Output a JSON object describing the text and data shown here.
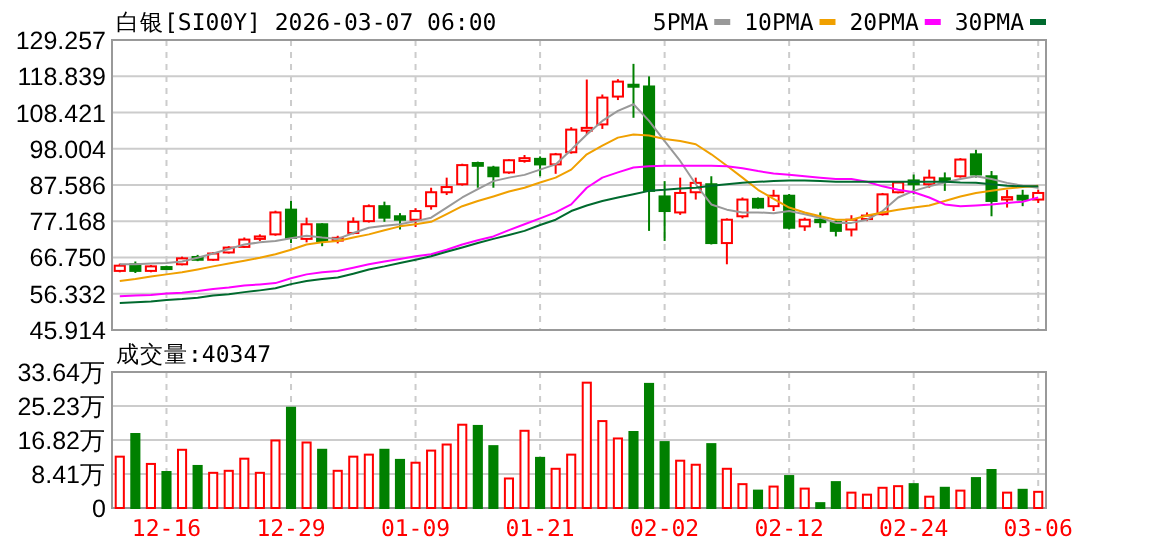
{
  "chart_data": [
    {
      "type": "candlestick",
      "title": "白银[SI00Y] 2026-03-07 06:00",
      "tick_labels": "y",
      "grid": true,
      "legend": "top right",
      "categories": [
        null,
        null,
        null,
        null,
        null,
        null,
        null,
        null,
        null,
        null,
        null,
        null,
        null,
        null,
        null,
        null,
        null,
        null,
        null,
        null,
        null,
        null,
        null,
        null,
        null,
        null,
        null,
        null,
        null,
        null,
        null,
        null,
        null,
        null,
        null,
        null,
        null,
        null,
        null,
        null,
        null,
        null,
        null,
        null,
        null,
        null,
        null,
        null,
        null,
        null,
        null,
        null,
        null,
        null,
        null,
        null,
        null,
        null,
        null,
        null
      ],
      "ylim": [
        45.914,
        129.257
      ],
      "yticks": [
        45.914,
        56.332,
        {
          "value": 66.75,
          "label": "66.750"
        },
        77.168,
        87.586,
        98.004,
        108.421,
        118.839,
        129.257
      ],
      "ohlc": [
        [
          62.9,
          65.0,
          62.5,
          64.4
        ],
        [
          64.8,
          65.6,
          62.3,
          62.9
        ],
        [
          62.9,
          64.6,
          62.5,
          64.2
        ],
        [
          64.0,
          64.4,
          63.2,
          63.6
        ],
        [
          64.8,
          67.0,
          64.5,
          66.5
        ],
        [
          66.9,
          67.5,
          65.7,
          66.1
        ],
        [
          66.1,
          68.3,
          65.8,
          67.9
        ],
        [
          68.2,
          70.0,
          67.9,
          69.6
        ],
        [
          69.8,
          72.5,
          69.5,
          71.9
        ],
        [
          72.1,
          73.4,
          71.5,
          72.8
        ],
        [
          73.4,
          80.2,
          73.0,
          79.7
        ],
        [
          80.5,
          83.0,
          70.9,
          72.4
        ],
        [
          72.1,
          78.2,
          71.1,
          76.3
        ],
        [
          76.3,
          76.6,
          70.0,
          71.5
        ],
        [
          71.6,
          73.0,
          70.8,
          72.4
        ],
        [
          73.8,
          78.3,
          73.4,
          77.0
        ],
        [
          77.2,
          82.0,
          76.8,
          81.5
        ],
        [
          81.5,
          82.8,
          77.0,
          78.2
        ],
        [
          78.6,
          79.5,
          74.8,
          77.6
        ],
        [
          77.6,
          80.9,
          75.5,
          80.1
        ],
        [
          81.5,
          86.8,
          80.5,
          85.5
        ],
        [
          85.5,
          89.7,
          84.7,
          87.0
        ],
        [
          87.8,
          93.7,
          87.4,
          93.3
        ],
        [
          93.9,
          94.3,
          86.8,
          93.1
        ],
        [
          92.6,
          93.1,
          86.8,
          90.1
        ],
        [
          91.2,
          95.0,
          90.8,
          94.7
        ],
        [
          94.5,
          96.2,
          94.0,
          95.3
        ],
        [
          95.1,
          95.8,
          90.1,
          93.5
        ],
        [
          93.5,
          96.8,
          90.8,
          96.4
        ],
        [
          97.0,
          104.2,
          96.6,
          103.5
        ],
        [
          103.2,
          117.9,
          102.1,
          104.0
        ],
        [
          105.0,
          113.6,
          103.7,
          112.7
        ],
        [
          113.0,
          118.0,
          112.0,
          117.3
        ],
        [
          116.4,
          122.4,
          106.9,
          115.9
        ],
        [
          115.9,
          118.8,
          74.4,
          85.9
        ],
        [
          84.3,
          88.7,
          71.5,
          80.1
        ],
        [
          79.7,
          89.7,
          79.0,
          85.3
        ],
        [
          85.5,
          89.7,
          83.4,
          88.2
        ],
        [
          87.8,
          90.1,
          70.5,
          70.9
        ],
        [
          70.9,
          78.0,
          64.8,
          77.6
        ],
        [
          78.6,
          84.0,
          78.0,
          83.4
        ],
        [
          83.6,
          84.0,
          80.8,
          81.1
        ],
        [
          81.5,
          86.2,
          80.1,
          84.5
        ],
        [
          84.5,
          85.0,
          74.8,
          75.3
        ],
        [
          75.7,
          78.2,
          74.4,
          77.6
        ],
        [
          77.6,
          79.7,
          75.3,
          76.9
        ],
        [
          76.9,
          77.4,
          72.8,
          74.4
        ],
        [
          74.8,
          78.9,
          72.8,
          77.6
        ],
        [
          77.8,
          79.7,
          77.2,
          78.8
        ],
        [
          79.2,
          85.3,
          78.8,
          84.9
        ],
        [
          85.5,
          88.7,
          85.2,
          88.3
        ],
        [
          88.9,
          90.6,
          84.9,
          87.8
        ],
        [
          87.8,
          92.0,
          86.8,
          89.7
        ],
        [
          89.5,
          91.2,
          85.9,
          89.1
        ],
        [
          90.1,
          95.3,
          89.7,
          94.9
        ],
        [
          96.4,
          97.7,
          89.7,
          90.6
        ],
        [
          90.1,
          91.6,
          78.6,
          83.0
        ],
        [
          83.4,
          86.2,
          81.1,
          84.1
        ],
        [
          84.5,
          86.2,
          81.5,
          83.4
        ],
        [
          83.4,
          86.2,
          82.4,
          85.3
        ]
      ],
      "colors": [
        "#ff0000",
        "#008000",
        "#ff0000",
        "#008000",
        "#ff0000",
        "#008000",
        "#ff0000",
        "#ff0000",
        "#ff0000",
        "#ff0000",
        "#ff0000",
        "#008000",
        "#ff0000",
        "#008000",
        "#ff0000",
        "#ff0000",
        "#ff0000",
        "#008000",
        "#008000",
        "#ff0000",
        "#ff0000",
        "#ff0000",
        "#ff0000",
        "#008000",
        "#008000",
        "#ff0000",
        "#ff0000",
        "#008000",
        "#ff0000",
        "#ff0000",
        "#ff0000",
        "#ff0000",
        "#ff0000",
        "#008000",
        "#008000",
        "#008000",
        "#ff0000",
        "#ff0000",
        "#008000",
        "#ff0000",
        "#ff0000",
        "#008000",
        "#ff0000",
        "#008000",
        "#ff0000",
        "#008000",
        "#008000",
        "#ff0000",
        "#ff0000",
        "#ff0000",
        "#ff0000",
        "#008000",
        "#ff0000",
        "#008000",
        "#ff0000",
        "#008000",
        "#008000",
        "#ff0000",
        "#008000",
        "#ff0000"
      ],
      "series": [
        {
          "type": "line",
          "name": "5PMA",
          "color": "#999999",
          "values": [
            64.8,
            64.8,
            65.0,
            65.2,
            65.6,
            66.7,
            67.9,
            69.2,
            70.5,
            71.1,
            71.5,
            72.3,
            73.0,
            72.5,
            72.1,
            73.8,
            75.3,
            75.9,
            76.3,
            77.2,
            78.2,
            81.1,
            84.0,
            86.4,
            88.7,
            89.7,
            90.5,
            92.0,
            93.5,
            97.7,
            102.1,
            106.0,
            108.9,
            110.8,
            106.0,
            100.2,
            94.5,
            87.8,
            82.0,
            80.5,
            79.7,
            79.7,
            79.5,
            80.1,
            79.2,
            78.2,
            76.7,
            76.7,
            77.6,
            80.1,
            84.0,
            85.9,
            87.2,
            88.3,
            89.3,
            90.1,
            89.3,
            88.2,
            87.4,
            86.8
          ]
        },
        {
          "type": "line",
          "name": "10PMA",
          "color": "#f0a000",
          "values": [
            60.0,
            60.6,
            61.3,
            61.9,
            62.5,
            63.3,
            64.2,
            65.0,
            65.8,
            66.7,
            67.7,
            69.0,
            70.5,
            71.1,
            71.5,
            72.5,
            73.4,
            74.6,
            75.7,
            76.3,
            77.0,
            79.2,
            81.5,
            83.0,
            84.3,
            85.7,
            86.8,
            88.3,
            89.7,
            92.0,
            96.4,
            98.9,
            101.2,
            102.1,
            101.8,
            100.8,
            100.2,
            99.3,
            96.4,
            93.1,
            89.7,
            86.2,
            83.6,
            81.1,
            79.7,
            78.6,
            77.6,
            77.6,
            78.8,
            79.7,
            80.5,
            81.1,
            81.7,
            83.0,
            84.3,
            85.3,
            85.9,
            86.6,
            87.0,
            87.4
          ]
        },
        {
          "type": "line",
          "name": "20PMA",
          "color": "#ff00ff",
          "values": [
            55.6,
            55.8,
            56.0,
            56.4,
            56.6,
            57.1,
            57.7,
            58.1,
            58.7,
            59.0,
            59.4,
            60.8,
            61.9,
            62.5,
            62.9,
            63.8,
            64.8,
            65.6,
            66.3,
            67.1,
            67.7,
            69.0,
            70.5,
            71.7,
            72.8,
            74.6,
            76.3,
            78.0,
            79.7,
            82.0,
            86.8,
            89.7,
            91.2,
            92.6,
            93.0,
            93.1,
            93.1,
            93.1,
            93.1,
            93.0,
            92.4,
            91.6,
            90.9,
            90.5,
            90.1,
            89.7,
            89.3,
            89.3,
            88.5,
            87.2,
            86.2,
            85.5,
            84.0,
            82.0,
            81.5,
            81.7,
            82.0,
            82.4,
            82.8,
            84.0
          ]
        },
        {
          "type": "line",
          "name": "30PMA",
          "color": "#006a2e",
          "values": [
            53.7,
            53.9,
            54.1,
            54.5,
            54.8,
            55.2,
            55.8,
            56.2,
            56.8,
            57.3,
            57.9,
            59.1,
            60.0,
            60.6,
            61.0,
            62.1,
            63.3,
            64.2,
            65.2,
            66.1,
            67.1,
            68.4,
            69.6,
            70.9,
            72.1,
            73.2,
            74.4,
            76.1,
            77.6,
            80.1,
            81.7,
            83.0,
            84.0,
            84.9,
            85.9,
            86.2,
            86.6,
            86.8,
            87.4,
            87.8,
            88.2,
            88.5,
            88.7,
            88.9,
            88.9,
            88.7,
            88.5,
            88.5,
            88.5,
            88.5,
            88.5,
            88.5,
            88.5,
            88.5,
            88.3,
            88.2,
            87.8,
            87.4,
            87.2,
            87.2
          ]
        }
      ]
    },
    {
      "type": "bar",
      "title": "成交量:40347",
      "grid": true,
      "categories": [
        null,
        null,
        null,
        "12-16",
        null,
        null,
        null,
        null,
        null,
        null,
        null,
        "12-29",
        null,
        null,
        null,
        null,
        null,
        null,
        null,
        "01-09",
        null,
        null,
        null,
        null,
        null,
        null,
        null,
        "01-21",
        null,
        null,
        null,
        null,
        null,
        null,
        null,
        "02-02",
        null,
        null,
        null,
        null,
        null,
        null,
        null,
        "02-12",
        null,
        null,
        null,
        null,
        null,
        null,
        null,
        "02-24",
        null,
        null,
        null,
        null,
        null,
        null,
        null,
        "03-06"
      ],
      "ylim": [
        0,
        33.64
      ],
      "yticks": [
        0,
        {
          "value": 8.41,
          "label": "8.41万"
        },
        {
          "value": 16.82,
          "label": "16.82万"
        },
        {
          "value": 25.23,
          "label": "25.23万"
        },
        {
          "value": 33.64,
          "label": "33.64万"
        }
      ],
      "values": [
        12.7,
        18.3,
        10.9,
        8.9,
        14.4,
        10.4,
        8.7,
        9.2,
        12.2,
        8.7,
        16.7,
        24.8,
        16.2,
        14.4,
        9.2,
        12.7,
        13.2,
        14.4,
        11.9,
        11.2,
        14.2,
        15.7,
        20.6,
        20.3,
        15.3,
        7.3,
        19.1,
        12.4,
        9.7,
        13.2,
        31.0,
        21.5,
        17.2,
        18.8,
        30.7,
        16.3,
        11.7,
        10.7,
        15.8,
        9.7,
        5.9,
        4.3,
        5.3,
        7.9,
        4.8,
        1.2,
        6.4,
        3.8,
        3.3,
        5.0,
        5.4,
        5.9,
        2.8,
        5.0,
        4.3,
        7.4,
        9.4,
        3.8,
        4.5,
        4.0
      ],
      "colors": [
        "#ff0000",
        "#008000",
        "#ff0000",
        "#008000",
        "#ff0000",
        "#008000",
        "#ff0000",
        "#ff0000",
        "#ff0000",
        "#ff0000",
        "#ff0000",
        "#008000",
        "#ff0000",
        "#008000",
        "#ff0000",
        "#ff0000",
        "#ff0000",
        "#008000",
        "#008000",
        "#ff0000",
        "#ff0000",
        "#ff0000",
        "#ff0000",
        "#008000",
        "#008000",
        "#ff0000",
        "#ff0000",
        "#008000",
        "#ff0000",
        "#ff0000",
        "#ff0000",
        "#ff0000",
        "#ff0000",
        "#008000",
        "#008000",
        "#008000",
        "#ff0000",
        "#ff0000",
        "#008000",
        "#ff0000",
        "#ff0000",
        "#008000",
        "#ff0000",
        "#008000",
        "#ff0000",
        "#008000",
        "#008000",
        "#ff0000",
        "#ff0000",
        "#ff0000",
        "#ff0000",
        "#008000",
        "#ff0000",
        "#008000",
        "#ff0000",
        "#008000",
        "#008000",
        "#ff0000",
        "#008000",
        "#ff0000"
      ]
    }
  ]
}
